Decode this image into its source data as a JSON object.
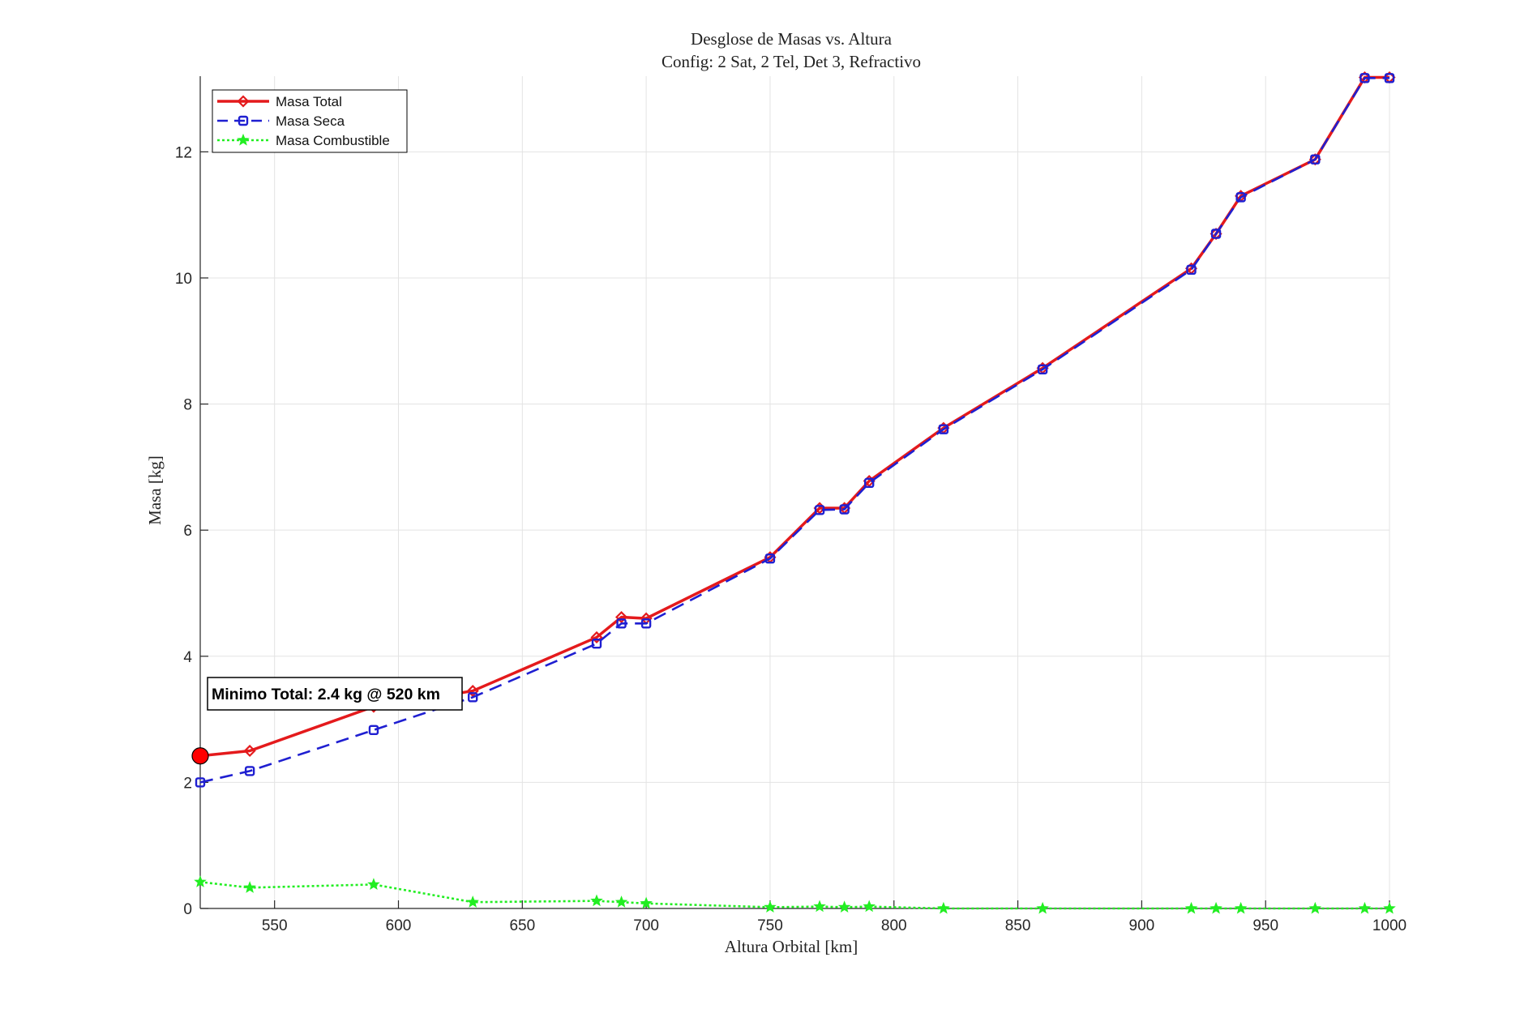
{
  "chart_data": {
    "type": "line",
    "title": "Desglose de Masas vs. Altura",
    "subtitle": "Config: 2 Sat, 2 Tel, Det 3, Refractivo",
    "xlabel": "Altura Orbital [km]",
    "ylabel": "Masa [kg]",
    "xlim": [
      520,
      1000
    ],
    "ylim": [
      0,
      13.2
    ],
    "xticks": [
      550,
      600,
      650,
      700,
      750,
      800,
      850,
      900,
      950,
      1000
    ],
    "yticks": [
      0,
      2,
      4,
      6,
      8,
      10,
      12
    ],
    "grid": true,
    "legend_position": "top-left",
    "x": [
      520,
      540,
      590,
      630,
      680,
      690,
      700,
      750,
      770,
      780,
      790,
      820,
      860,
      920,
      930,
      940,
      970,
      990,
      1000
    ],
    "series": [
      {
        "name": "Masa Total",
        "color": "#e41a1c",
        "line_style": "solid",
        "marker": "diamond",
        "values": [
          2.42,
          2.5,
          3.2,
          3.45,
          4.3,
          4.62,
          4.6,
          5.57,
          6.35,
          6.35,
          6.78,
          7.62,
          8.57,
          10.15,
          10.7,
          11.3,
          11.88,
          13.18,
          13.18
        ]
      },
      {
        "name": "Masa Seca",
        "color": "#1f1fd1",
        "line_style": "dashed",
        "marker": "square",
        "values": [
          2.0,
          2.18,
          2.83,
          3.35,
          4.2,
          4.52,
          4.52,
          5.55,
          6.32,
          6.33,
          6.75,
          7.6,
          8.55,
          10.13,
          10.7,
          11.28,
          11.88,
          13.17,
          13.17
        ]
      },
      {
        "name": "Masa Combustible",
        "color": "#22ee22",
        "line_style": "dotted",
        "marker": "star",
        "values": [
          0.42,
          0.33,
          0.38,
          0.1,
          0.12,
          0.1,
          0.08,
          0.02,
          0.03,
          0.02,
          0.03,
          0.0,
          0.0,
          0.0,
          0.0,
          0.0,
          0.0,
          0.0,
          0.0
        ]
      }
    ],
    "annotation": {
      "text": "Minimo Total: 2.4 kg @ 520 km",
      "x": 520,
      "y": 2.42,
      "marker_color": "#ff0000"
    }
  }
}
